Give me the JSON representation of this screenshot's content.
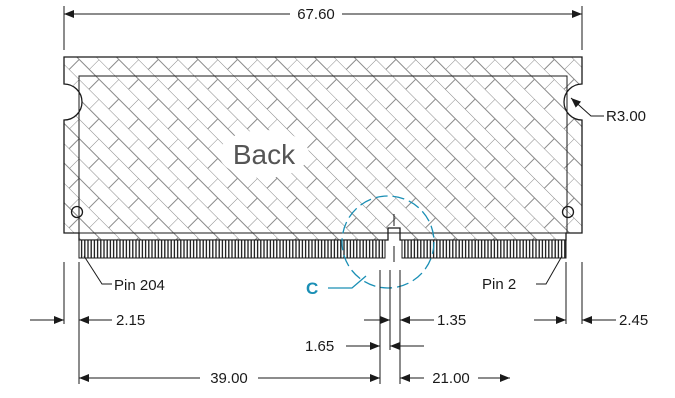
{
  "figure": {
    "face_label": "Back",
    "detail_label": "C",
    "colors": {
      "line": "#1a1a1a",
      "hatch": "#8a8a8a",
      "detail": "#1a8fb5",
      "back_text": "#555555"
    },
    "dimensions": {
      "overall_width": "67.60",
      "corner_radius": "R3.00",
      "left_edge_to_first_pin": "2.15",
      "right_edge_to_last_pin": "2.45",
      "notch_width": "1.65",
      "notch_to_right_pins": "1.35",
      "left_segment": "39.00",
      "right_segment": "21.00"
    },
    "pins": {
      "left_end_label": "Pin 204",
      "right_end_label": "Pin 2"
    }
  }
}
